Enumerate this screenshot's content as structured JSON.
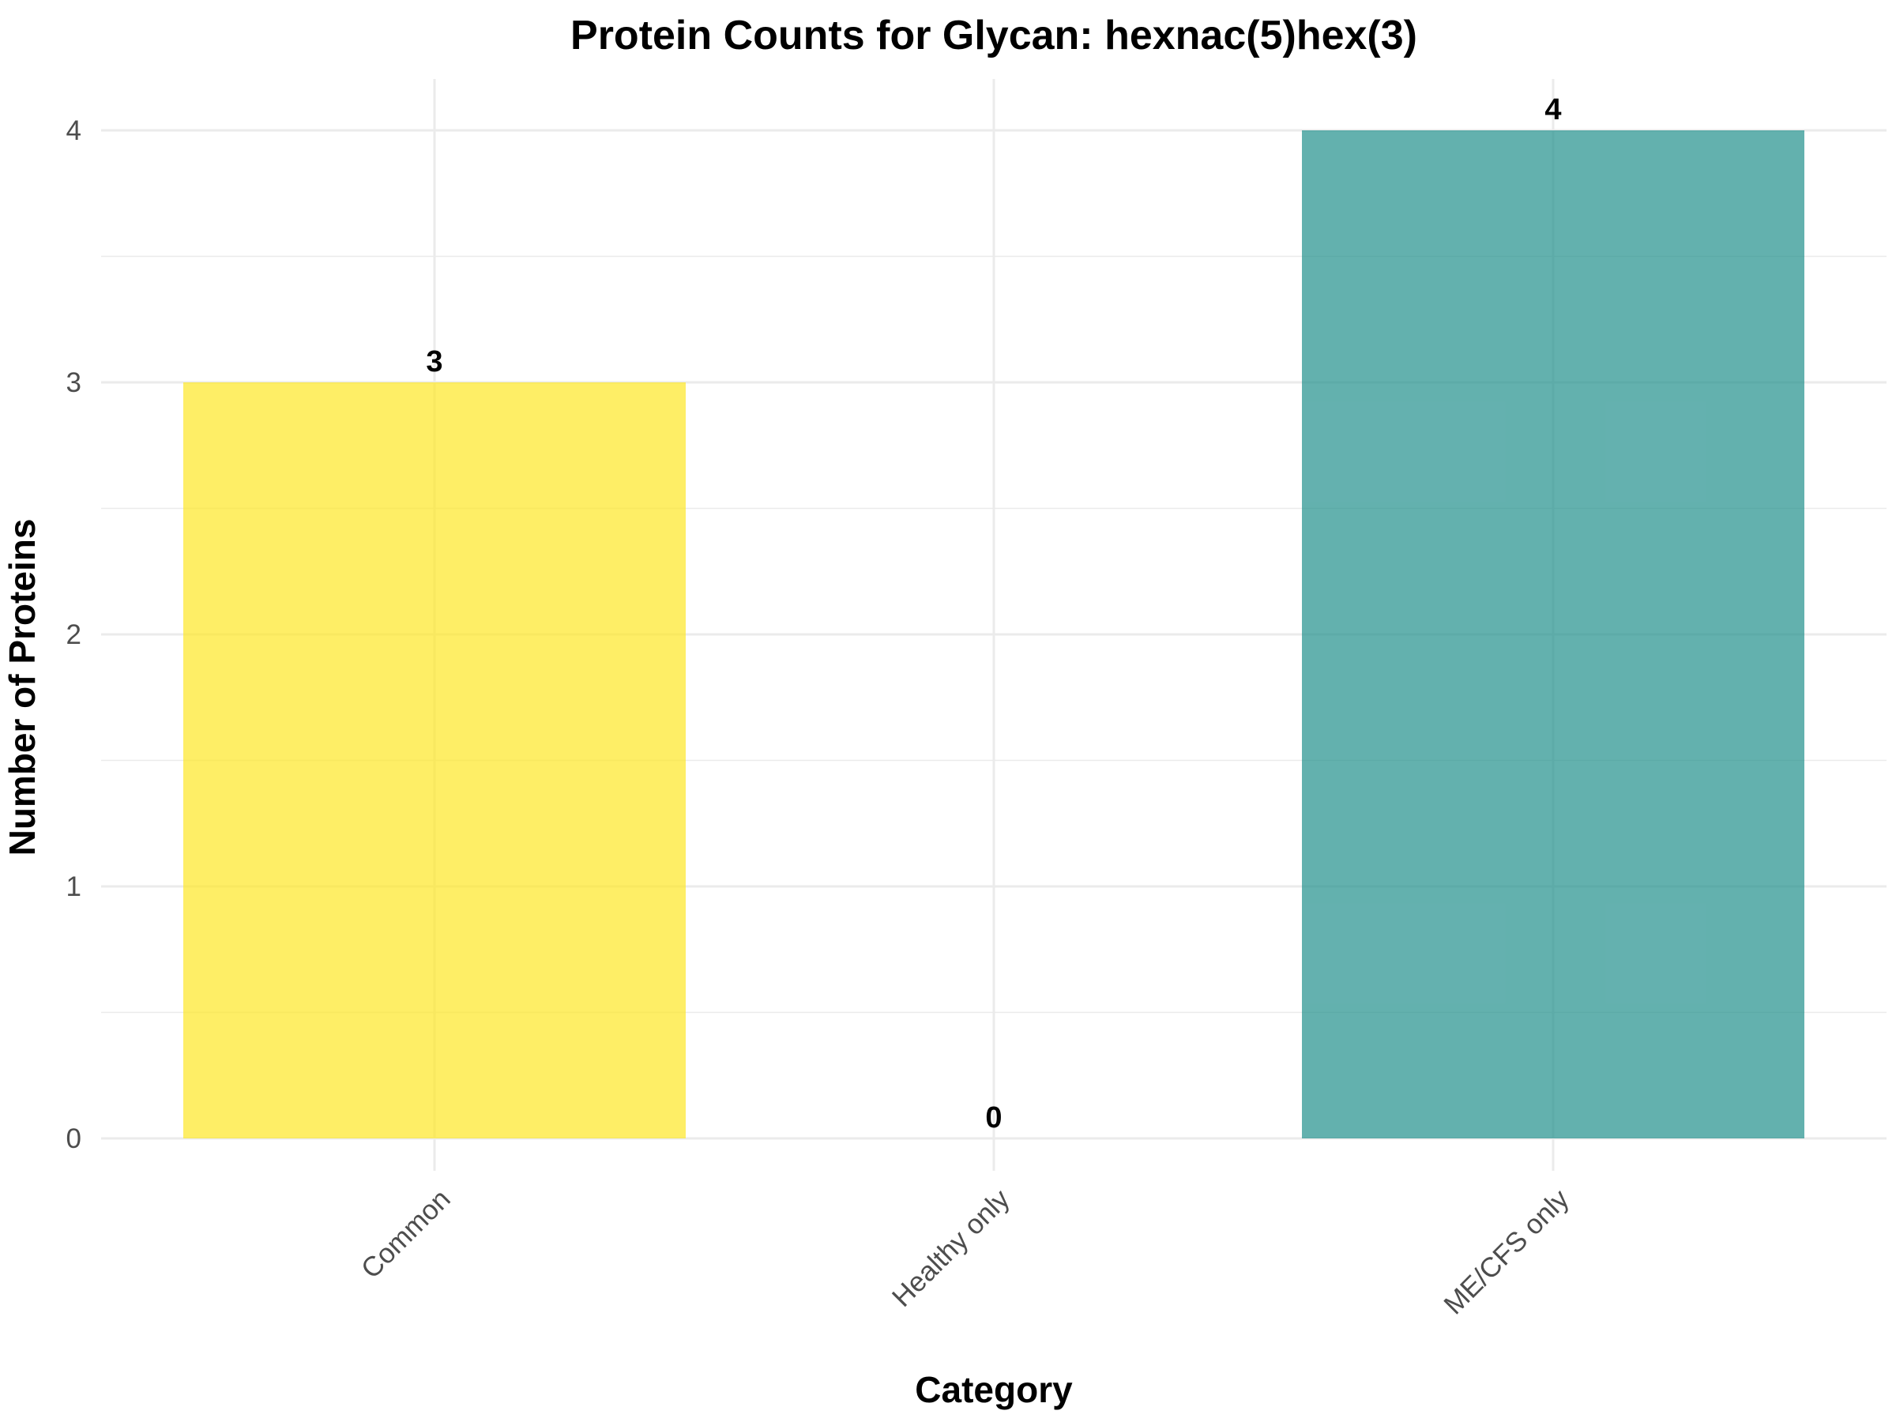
{
  "chart_data": {
    "type": "bar",
    "title": "Protein Counts for Glycan: hexnac(5)hex(3)",
    "xlabel": "Category",
    "ylabel": "Number of Proteins",
    "categories": [
      "Common",
      "Healthy only",
      "ME/CFS only"
    ],
    "values": [
      3,
      0,
      4
    ],
    "bar_colors": [
      "#fde725",
      "#fde725",
      "#21908c"
    ],
    "ylim": [
      0,
      4
    ],
    "yticks": [
      0,
      1,
      2,
      3,
      4
    ],
    "ytick_labels": [
      "0",
      "1",
      "2",
      "3",
      "4"
    ],
    "grid": true,
    "legend": "none"
  }
}
